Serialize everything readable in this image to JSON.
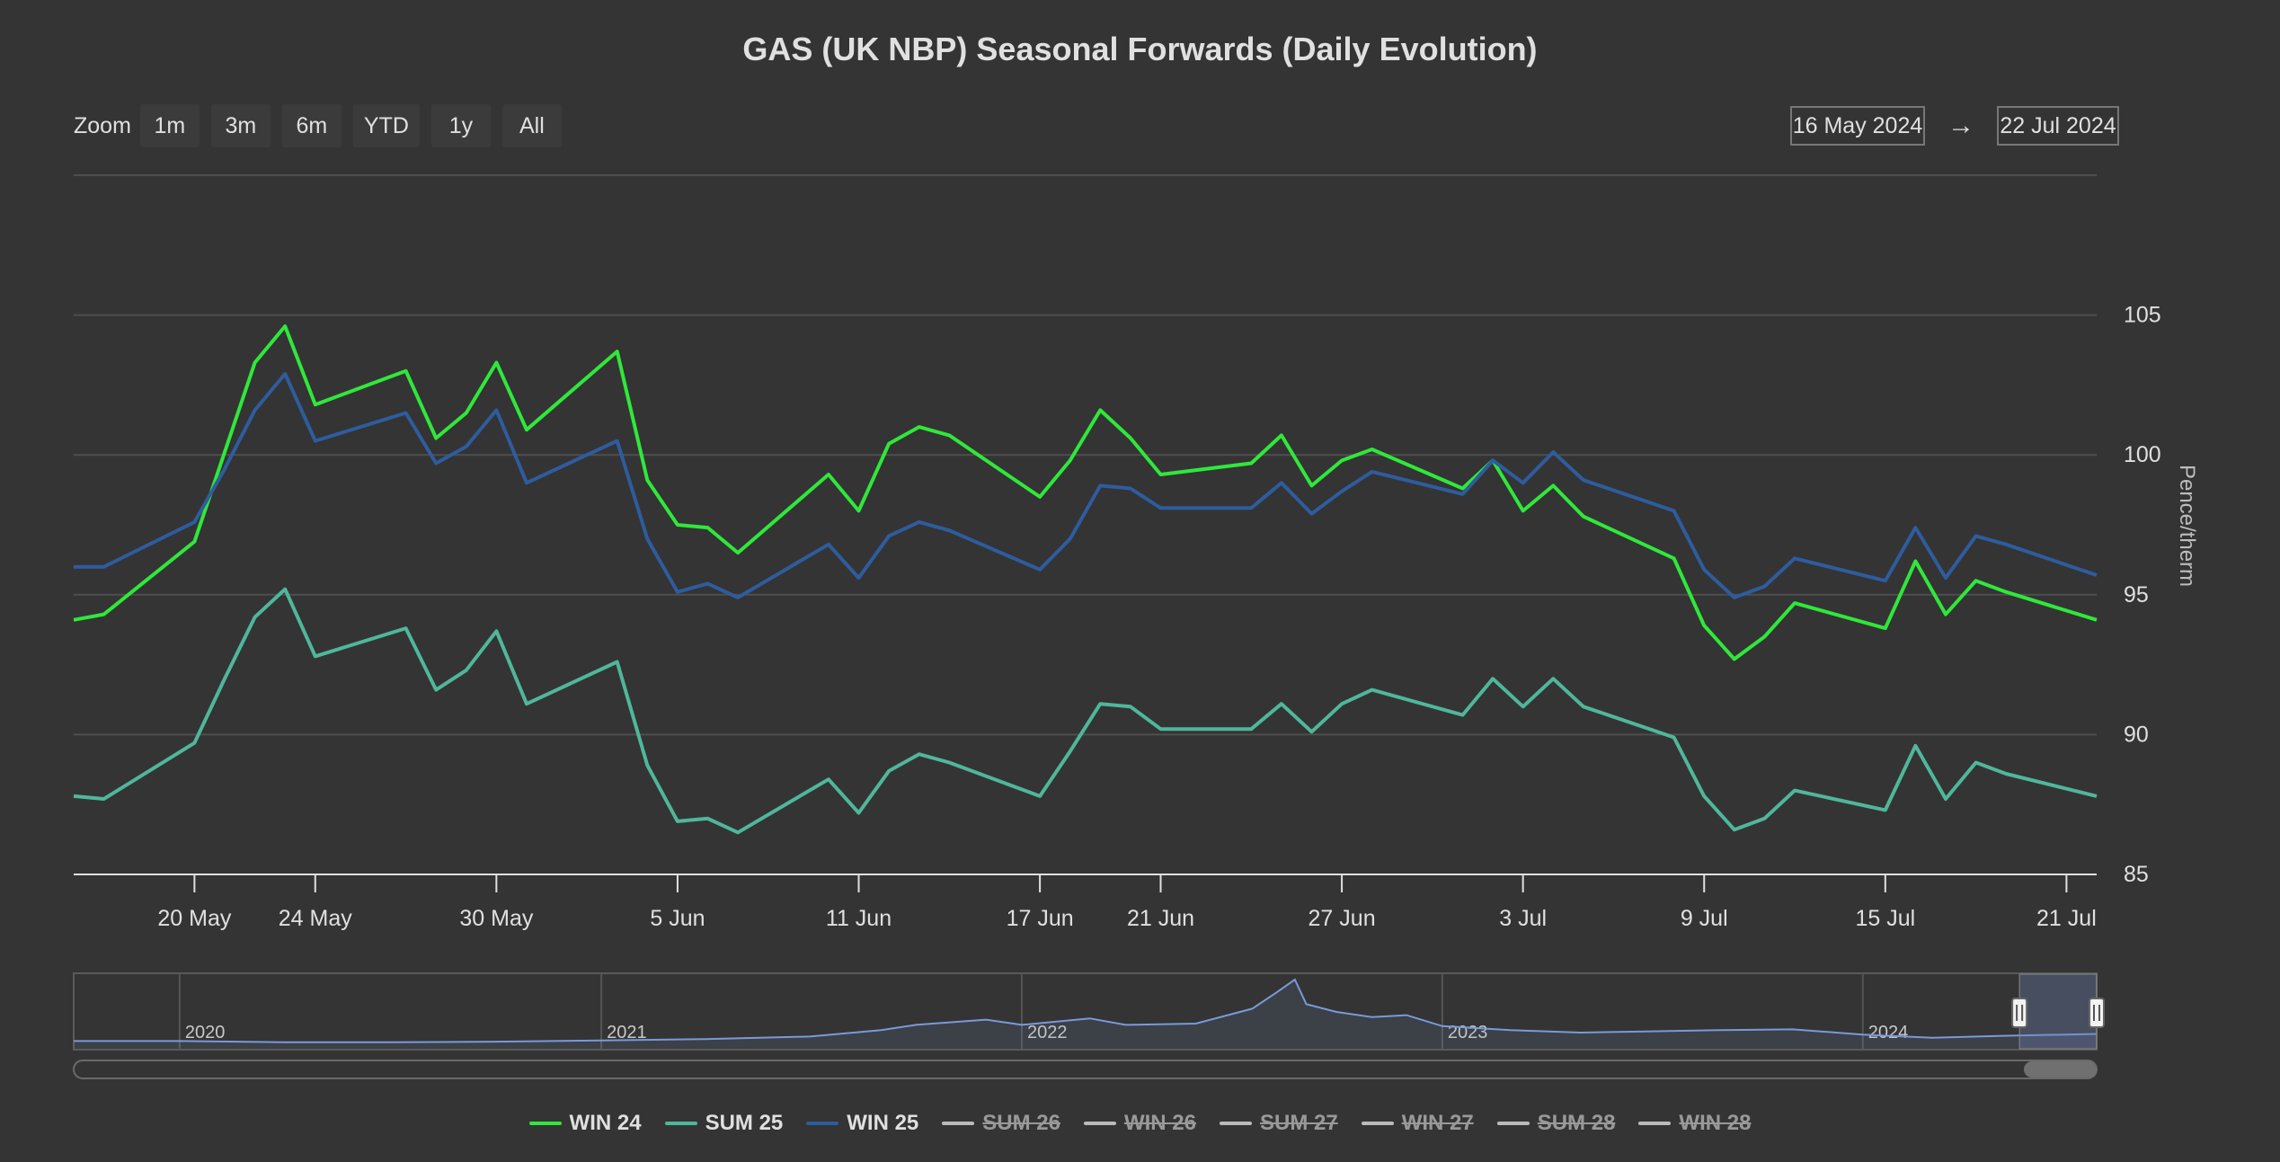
{
  "title": "GAS (UK NBP) Seasonal Forwards (Daily Evolution)",
  "zoom": {
    "label": "Zoom",
    "buttons": [
      "1m",
      "3m",
      "6m",
      "YTD",
      "1y",
      "All"
    ]
  },
  "range": {
    "from": "16 May 2024",
    "arrow": "→",
    "to": "22 Jul 2024"
  },
  "chart_data": {
    "type": "line",
    "ylabel": "Pence/therm",
    "ylim": [
      85,
      110
    ],
    "yticks": [
      85,
      90,
      95,
      100,
      105
    ],
    "xlim": [
      "2024-05-16",
      "2024-07-22"
    ],
    "xticks": [
      {
        "date": "2024-05-20",
        "label": "20 May"
      },
      {
        "date": "2024-05-24",
        "label": "24 May"
      },
      {
        "date": "2024-05-30",
        "label": "30 May"
      },
      {
        "date": "2024-06-05",
        "label": "5 Jun"
      },
      {
        "date": "2024-06-11",
        "label": "11 Jun"
      },
      {
        "date": "2024-06-17",
        "label": "17 Jun"
      },
      {
        "date": "2024-06-21",
        "label": "21 Jun"
      },
      {
        "date": "2024-06-27",
        "label": "27 Jun"
      },
      {
        "date": "2024-07-03",
        "label": "3 Jul"
      },
      {
        "date": "2024-07-09",
        "label": "9 Jul"
      },
      {
        "date": "2024-07-15",
        "label": "15 Jul"
      },
      {
        "date": "2024-07-21",
        "label": "21 Jul"
      }
    ],
    "x": [
      "2024-05-16",
      "2024-05-17",
      "2024-05-20",
      "2024-05-21",
      "2024-05-22",
      "2024-05-23",
      "2024-05-24",
      "2024-05-27",
      "2024-05-28",
      "2024-05-29",
      "2024-05-30",
      "2024-05-31",
      "2024-06-03",
      "2024-06-04",
      "2024-06-05",
      "2024-06-06",
      "2024-06-07",
      "2024-06-10",
      "2024-06-11",
      "2024-06-12",
      "2024-06-13",
      "2024-06-14",
      "2024-06-17",
      "2024-06-18",
      "2024-06-19",
      "2024-06-20",
      "2024-06-21",
      "2024-06-24",
      "2024-06-25",
      "2024-06-26",
      "2024-06-27",
      "2024-06-28",
      "2024-07-01",
      "2024-07-02",
      "2024-07-03",
      "2024-07-04",
      "2024-07-05",
      "2024-07-08",
      "2024-07-09",
      "2024-07-10",
      "2024-07-11",
      "2024-07-12",
      "2024-07-15",
      "2024-07-16",
      "2024-07-17",
      "2024-07-18",
      "2024-07-19",
      "2024-07-22"
    ],
    "series": [
      {
        "name": "WIN 24",
        "color": "#2fe83a",
        "visible": true,
        "values": [
          94.1,
          94.3,
          96.9,
          100.1,
          103.3,
          104.6,
          101.8,
          103.0,
          100.6,
          101.5,
          103.3,
          100.9,
          103.7,
          99.1,
          97.5,
          97.4,
          96.5,
          99.3,
          98.0,
          100.4,
          101.0,
          100.7,
          98.5,
          99.8,
          101.6,
          100.6,
          99.3,
          99.7,
          100.7,
          98.9,
          99.8,
          100.2,
          98.8,
          99.8,
          98.0,
          98.9,
          97.8,
          96.3,
          93.9,
          92.7,
          93.5,
          94.7,
          93.8,
          96.2,
          94.3,
          95.5,
          95.1,
          94.1
        ]
      },
      {
        "name": "SUM 25",
        "color": "#4fb79a",
        "visible": true,
        "values": [
          87.8,
          87.7,
          89.7,
          92.0,
          94.2,
          95.2,
          92.8,
          93.8,
          91.6,
          92.3,
          93.7,
          91.1,
          92.6,
          88.9,
          86.9,
          87.0,
          86.5,
          88.4,
          87.2,
          88.7,
          89.3,
          89.0,
          87.8,
          89.4,
          91.1,
          91.0,
          90.2,
          90.2,
          91.1,
          90.1,
          91.1,
          91.6,
          90.7,
          92.0,
          91.0,
          92.0,
          91.0,
          89.9,
          87.8,
          86.6,
          87.0,
          88.0,
          87.3,
          89.6,
          87.7,
          89.0,
          88.6,
          87.8
        ]
      },
      {
        "name": "WIN 25",
        "color": "#2e5c9e",
        "visible": true,
        "values": [
          96.0,
          96.0,
          97.6,
          99.5,
          101.6,
          102.9,
          100.5,
          101.5,
          99.7,
          100.3,
          101.6,
          99.0,
          100.5,
          97.0,
          95.1,
          95.4,
          94.9,
          96.8,
          95.6,
          97.1,
          97.6,
          97.3,
          95.9,
          97.0,
          98.9,
          98.8,
          98.1,
          98.1,
          99.0,
          97.9,
          98.7,
          99.4,
          98.6,
          99.8,
          99.0,
          100.1,
          99.1,
          98.0,
          95.9,
          94.9,
          95.3,
          96.3,
          95.5,
          97.4,
          95.6,
          97.1,
          96.8,
          95.7
        ]
      },
      {
        "name": "SUM 26",
        "color": "#bbbbbb",
        "visible": false
      },
      {
        "name": "WIN 26",
        "color": "#bbbbbb",
        "visible": false
      },
      {
        "name": "SUM 27",
        "color": "#bbbbbb",
        "visible": false
      },
      {
        "name": "WIN 27",
        "color": "#bbbbbb",
        "visible": false
      },
      {
        "name": "SUM 28",
        "color": "#bbbbbb",
        "visible": false
      },
      {
        "name": "WIN 28",
        "color": "#bbbbbb",
        "visible": false
      }
    ],
    "navigator": {
      "years": [
        "2020",
        "2021",
        "2022",
        "2023",
        "2024"
      ],
      "series_color": "#7a99d9",
      "overview": [
        [
          "2019-10-01",
          0.05
        ],
        [
          "2020-01-01",
          0.05
        ],
        [
          "2020-04-01",
          0.03
        ],
        [
          "2020-07-01",
          0.03
        ],
        [
          "2020-10-01",
          0.04
        ],
        [
          "2021-01-01",
          0.06
        ],
        [
          "2021-04-01",
          0.08
        ],
        [
          "2021-07-01",
          0.12
        ],
        [
          "2021-09-01",
          0.22
        ],
        [
          "2021-10-01",
          0.3
        ],
        [
          "2021-12-01",
          0.38
        ],
        [
          "2022-01-01",
          0.3
        ],
        [
          "2022-03-01",
          0.4
        ],
        [
          "2022-04-01",
          0.3
        ],
        [
          "2022-06-01",
          0.32
        ],
        [
          "2022-07-20",
          0.55
        ],
        [
          "2022-08-10",
          0.8
        ],
        [
          "2022-08-26",
          1.0
        ],
        [
          "2022-09-05",
          0.62
        ],
        [
          "2022-10-01",
          0.5
        ],
        [
          "2022-11-01",
          0.42
        ],
        [
          "2022-12-01",
          0.45
        ],
        [
          "2023-01-01",
          0.28
        ],
        [
          "2023-03-01",
          0.22
        ],
        [
          "2023-05-01",
          0.18
        ],
        [
          "2023-07-01",
          0.2
        ],
        [
          "2023-09-01",
          0.22
        ],
        [
          "2023-11-01",
          0.23
        ],
        [
          "2024-01-01",
          0.15
        ],
        [
          "2024-03-01",
          0.1
        ],
        [
          "2024-05-01",
          0.13
        ],
        [
          "2024-07-22",
          0.16
        ]
      ]
    }
  },
  "navigator_labels": {
    "left_handle": "navigator-left-handle",
    "right_handle": "navigator-right-handle"
  }
}
